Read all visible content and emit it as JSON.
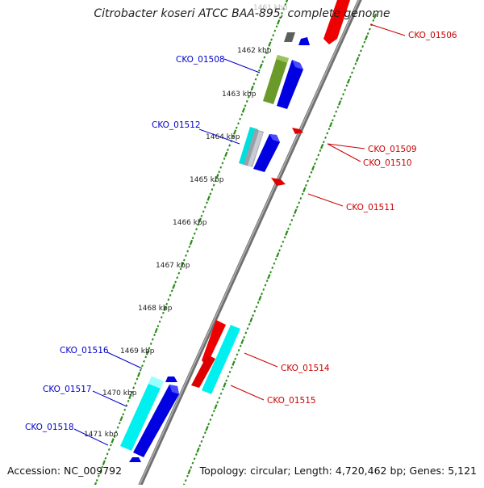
{
  "title": "Citrobacter koseri ATCC BAA-895, complete genome",
  "footer": {
    "accession": "Accession: NC_009792",
    "summary": "Topology: circular; Length: 4,720,462 bp; Genes: 5,121"
  },
  "colors": {
    "backbone": "#8a8a8a",
    "tick": "#2a8a1a",
    "forward_label": "#0000cc",
    "reverse_label": "#cc0000",
    "forward_gene": "#0000e0",
    "reverse_gene": "#ee0000",
    "cyan_gene": "#00e8e8",
    "olive_gene": "#6a9a2a",
    "grey_gene": "#666666"
  },
  "kbp_ticks": [
    {
      "label": "1461 kbp"
    },
    {
      "label": "1462 kbp"
    },
    {
      "label": "1463 kbp"
    },
    {
      "label": "1464 kbp"
    },
    {
      "label": "1465 kbp"
    },
    {
      "label": "1466 kbp"
    },
    {
      "label": "1467 kbp"
    },
    {
      "label": "1468 kbp"
    },
    {
      "label": "1469 kbp"
    },
    {
      "label": "1470 kbp"
    },
    {
      "label": "1471 kbp"
    }
  ],
  "forward_gene_labels": [
    "CKO_01508",
    "CKO_01512",
    "CKO_01516",
    "CKO_01517",
    "CKO_01518"
  ],
  "reverse_gene_labels": [
    "CKO_01506",
    "CKO_01509",
    "CKO_01510",
    "CKO_01511",
    "CKO_01514",
    "CKO_01515"
  ]
}
